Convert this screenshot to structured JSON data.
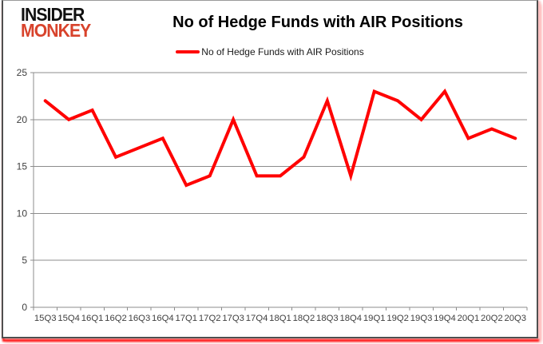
{
  "logo": {
    "line1": "INSIDER",
    "line2": "MONKEY"
  },
  "header": {
    "title": "No of Hedge Funds with AIR Positions"
  },
  "legend": {
    "label": "No of Hedge Funds with AIR Positions"
  },
  "colors": {
    "line": "#ff0000",
    "logo_red": "#d8432c",
    "grid": "#8c8c8c",
    "axis": "#8c8c8c",
    "tick_text": "#3f3f3f",
    "shadow_bottom": "#ff0f0f",
    "shadow_right": "#ffc4c4"
  },
  "chart_data": {
    "type": "line",
    "title": "No of Hedge Funds with AIR Positions",
    "categories": [
      "15Q3",
      "15Q4",
      "16Q1",
      "16Q2",
      "16Q3",
      "16Q4",
      "17Q1",
      "17Q2",
      "17Q3",
      "17Q4",
      "18Q1",
      "18Q2",
      "18Q3",
      "18Q4",
      "19Q1",
      "19Q2",
      "19Q3",
      "19Q4",
      "20Q1",
      "20Q2",
      "20Q3"
    ],
    "series": [
      {
        "name": "No of Hedge Funds with AIR Positions",
        "color": "#ff0000",
        "values": [
          22,
          20,
          21,
          16,
          17,
          18,
          13,
          14,
          20,
          14,
          14,
          16,
          22,
          14,
          23,
          22,
          20,
          23,
          18,
          19,
          18
        ]
      }
    ],
    "xlabel": "",
    "ylabel": "",
    "ylim": [
      0,
      25
    ],
    "ytick_interval": 5,
    "yticks": [
      0,
      5,
      10,
      15,
      20,
      25
    ],
    "grid": true,
    "legend_position": "top-center"
  }
}
